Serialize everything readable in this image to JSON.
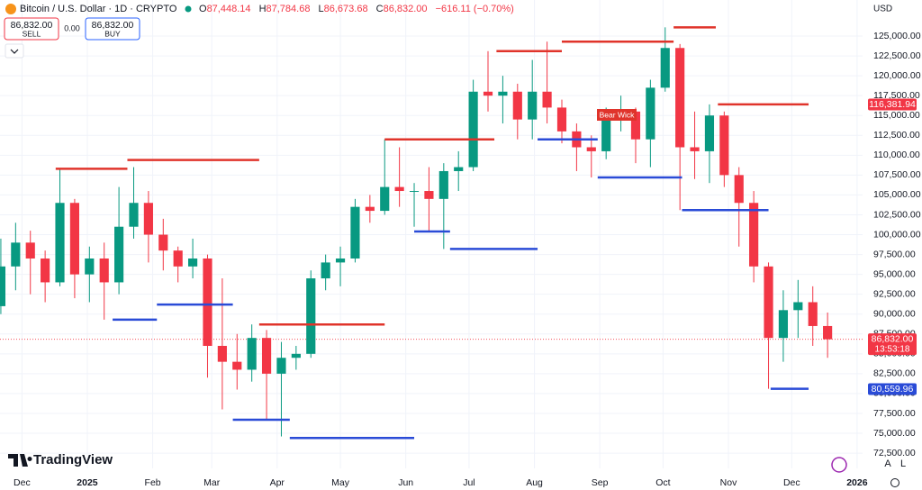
{
  "header": {
    "title": "Bitcoin / U.S. Dollar · 1D · CRYPTO",
    "ohlc": [
      {
        "key": "O",
        "value": "87,448.14"
      },
      {
        "key": "H",
        "value": "87,784.68"
      },
      {
        "key": "L",
        "value": "86,673.68"
      },
      {
        "key": "C",
        "value": "86,832.00"
      }
    ],
    "change": "−616.11 (−0.70%)",
    "sell_price": "86,832.00",
    "sell_label": "SELL",
    "spread": "0.00",
    "buy_price": "86,832.00",
    "buy_label": "BUY",
    "currency": "USD",
    "logo": "TradingView",
    "scale_auto": "A",
    "scale_log": "L"
  },
  "chart_data": {
    "type": "candlestick",
    "x": [
      -41,
      -34,
      -27,
      -20,
      -13,
      -6,
      1,
      8,
      15,
      22,
      29,
      36,
      43,
      50,
      57,
      64,
      71,
      78,
      85,
      92,
      99,
      106,
      113,
      120,
      127,
      134,
      141,
      148,
      155,
      162,
      169,
      176,
      183,
      190,
      197,
      204,
      211,
      218,
      225,
      232,
      239,
      246,
      253,
      260,
      267,
      274,
      281,
      288,
      295,
      302,
      309,
      316,
      323,
      330,
      337,
      344,
      351
    ],
    "open": [
      91000,
      96000,
      99000,
      97000,
      94000,
      104000,
      95000,
      97000,
      94000,
      101000,
      104000,
      100000,
      98000,
      96000,
      97000,
      86000,
      84000,
      83000,
      87000,
      82500,
      84500,
      85000,
      94500,
      96500,
      97000,
      103500,
      103000,
      106000,
      105500,
      105500,
      104500,
      108000,
      108500,
      118000,
      117500,
      118000,
      114500,
      118000,
      116000,
      113000,
      111000,
      110500,
      115000,
      115500,
      112000,
      118500,
      123500,
      111000,
      110500,
      115000,
      107500,
      104000,
      96000,
      87000,
      90500,
      91500,
      88500
    ],
    "high": [
      99500,
      101500,
      100500,
      98000,
      108300,
      104500,
      98500,
      99000,
      106000,
      108500,
      105500,
      102000,
      98500,
      99500,
      97500,
      94500,
      87500,
      88700,
      88000,
      86500,
      86000,
      95500,
      97500,
      98500,
      104500,
      105000,
      112000,
      111000,
      106500,
      108500,
      109000,
      110500,
      119500,
      123100,
      120000,
      119000,
      122000,
      124300,
      117000,
      114000,
      112500,
      116000,
      117500,
      116000,
      119500,
      126100,
      124000,
      115500,
      116400,
      115500,
      108500,
      105500,
      96500,
      93000,
      94300,
      93500,
      90200
    ],
    "low": [
      90000,
      93000,
      92500,
      91500,
      93500,
      92000,
      91500,
      89300,
      92500,
      99500,
      96500,
      95500,
      94000,
      94500,
      82000,
      78000,
      80500,
      81500,
      76700,
      74600,
      83000,
      84500,
      93000,
      93500,
      96500,
      101500,
      102500,
      103500,
      101000,
      100400,
      98200,
      105500,
      108000,
      115500,
      114000,
      112000,
      112000,
      114000,
      111500,
      108000,
      107200,
      109500,
      113000,
      109000,
      108500,
      118000,
      103100,
      107000,
      106500,
      106000,
      98500,
      94000,
      80600,
      84000,
      87000,
      86000,
      84500
    ],
    "close": [
      96000,
      99000,
      97000,
      94000,
      104000,
      95000,
      97000,
      94000,
      101000,
      104000,
      100000,
      98000,
      96000,
      97000,
      86000,
      84000,
      83000,
      87000,
      82500,
      84500,
      85000,
      94500,
      96500,
      97000,
      103500,
      103000,
      106000,
      105500,
      105500,
      104500,
      108000,
      108500,
      118000,
      117500,
      118000,
      114500,
      118000,
      116000,
      113000,
      111000,
      110500,
      115000,
      115500,
      112000,
      118500,
      123500,
      111000,
      110500,
      115000,
      107500,
      104000,
      96000,
      87000,
      90500,
      91500,
      88500,
      86832
    ],
    "up_color": "#089981",
    "down_color": "#f23645",
    "xlim": [
      -41.4,
      367.6
    ],
    "xticks": [
      {
        "value": -31,
        "label": "Dec"
      },
      {
        "value": 0,
        "label": "2025"
      },
      {
        "value": 31,
        "label": "Feb"
      },
      {
        "value": 59,
        "label": "Mar"
      },
      {
        "value": 90,
        "label": "Apr"
      },
      {
        "value": 120,
        "label": "May"
      },
      {
        "value": 151,
        "label": "Jun"
      },
      {
        "value": 181,
        "label": "Jul"
      },
      {
        "value": 212,
        "label": "Aug"
      },
      {
        "value": 243,
        "label": "Sep"
      },
      {
        "value": 273,
        "label": "Oct"
      },
      {
        "value": 304,
        "label": "Nov"
      },
      {
        "value": 334,
        "label": "Dec"
      },
      {
        "value": 365,
        "label": "2026"
      }
    ],
    "ylim": [
      70580,
      129540
    ],
    "yticks": [
      {
        "value": 125000,
        "label": "125,000.00"
      },
      {
        "value": 122500,
        "label": "122,500.00"
      },
      {
        "value": 120000,
        "label": "120,000.00"
      },
      {
        "value": 117500,
        "label": "117,500.00"
      },
      {
        "value": 115000,
        "label": "115,000.00"
      },
      {
        "value": 112500,
        "label": "112,500.00"
      },
      {
        "value": 110000,
        "label": "110,000.00"
      },
      {
        "value": 107500,
        "label": "107,500.00"
      },
      {
        "value": 105000,
        "label": "105,000.00"
      },
      {
        "value": 102500,
        "label": "102,500.00"
      },
      {
        "value": 100000,
        "label": "100,000.00"
      },
      {
        "value": 97500,
        "label": "97,500.00"
      },
      {
        "value": 95000,
        "label": "95,000.00"
      },
      {
        "value": 92500,
        "label": "92,500.00"
      },
      {
        "value": 90000,
        "label": "90,000.00"
      },
      {
        "value": 87500,
        "label": "87,500.00"
      },
      {
        "value": 85000,
        "label": "85,000.00"
      },
      {
        "value": 82500,
        "label": "82,500.00"
      },
      {
        "value": 80000,
        "label": "80,000.00"
      },
      {
        "value": 77500,
        "label": "77,500.00"
      },
      {
        "value": 75000,
        "label": "75,000.00"
      },
      {
        "value": 72500,
        "label": "72,500.00"
      }
    ],
    "grid": true,
    "resistance_color": "#e0342b",
    "support_color": "#2a4bd7",
    "resistance": [
      {
        "value": 108300,
        "start": -15,
        "end": 19
      },
      {
        "value": 109400,
        "start": 19,
        "end": 81.5
      },
      {
        "value": 88700,
        "start": 81.5,
        "end": 141
      },
      {
        "value": 112000,
        "start": 141,
        "end": 193
      },
      {
        "value": 123100,
        "start": 194,
        "end": 225
      },
      {
        "value": 124300,
        "start": 225,
        "end": 278
      },
      {
        "value": 126100,
        "start": 278,
        "end": 298
      },
      {
        "value": 116400,
        "start": 299,
        "end": 342
      }
    ],
    "support": [
      {
        "value": 89300,
        "start": 12,
        "end": 33
      },
      {
        "value": 91200,
        "start": 33,
        "end": 69
      },
      {
        "value": 76700,
        "start": 69,
        "end": 96
      },
      {
        "value": 74400,
        "start": 96,
        "end": 155
      },
      {
        "value": 100400,
        "start": 155,
        "end": 172
      },
      {
        "value": 98200,
        "start": 172,
        "end": 213.5
      },
      {
        "value": 112000,
        "start": 213.5,
        "end": 242
      },
      {
        "value": 107200,
        "start": 242,
        "end": 282
      },
      {
        "value": 103100,
        "start": 282,
        "end": 323
      },
      {
        "value": 80600,
        "start": 324,
        "end": 342
      }
    ],
    "price_labels": [
      {
        "value": 116381.94,
        "label": "116,381.94",
        "color": "#f23645"
      },
      {
        "value": 86832,
        "label": "86,832.00",
        "sublabel": "13:53:18",
        "color": "#f23645"
      },
      {
        "value": 80559.96,
        "label": "80,559.96",
        "color": "#2a4bd7"
      }
    ],
    "annotation": "Bear Wick"
  }
}
